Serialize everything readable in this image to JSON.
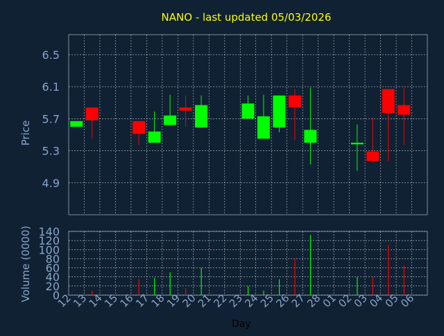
{
  "title": "NANO - last updated 05/03/2026",
  "colors": {
    "background": "#0f2133",
    "title": "#ffff00",
    "axis_text": "#8aa4c8",
    "xlabel_text": "#000000",
    "grid": "#ffffff",
    "up": "#00ff00",
    "down": "#ff0000"
  },
  "chart_data": [
    {
      "type": "candlestick",
      "ylabel": "Price",
      "ylim": [
        4.5,
        6.75
      ],
      "yticks": [
        "4.9",
        "5.3",
        "5.7",
        "6.1",
        "6.5"
      ],
      "grid": true,
      "categories": [
        "12",
        "13",
        "14",
        "15",
        "16",
        "17",
        "18",
        "19",
        "20",
        "21",
        "22",
        "23",
        "24",
        "25",
        "26",
        "27",
        "28",
        "01",
        "02",
        "03",
        "04",
        "05",
        "06"
      ],
      "candles": [
        {
          "x": "12",
          "open": 5.6,
          "high": 5.67,
          "low": 5.6,
          "close": 5.67
        },
        {
          "x": "13",
          "open": 5.84,
          "high": 5.84,
          "low": 5.45,
          "close": 5.68
        },
        {
          "x": "16",
          "open": 5.67,
          "high": 5.67,
          "low": 5.37,
          "close": 5.51
        },
        {
          "x": "17",
          "open": 5.4,
          "high": 5.79,
          "low": 5.4,
          "close": 5.54
        },
        {
          "x": "18",
          "open": 5.62,
          "high": 6.0,
          "low": 5.62,
          "close": 5.74
        },
        {
          "x": "19",
          "open": 5.84,
          "high": 5.99,
          "low": 5.6,
          "close": 5.8
        },
        {
          "x": "20",
          "open": 5.59,
          "high": 5.99,
          "low": 5.59,
          "close": 5.87
        },
        {
          "x": "23",
          "open": 5.7,
          "high": 5.99,
          "low": 5.7,
          "close": 5.89
        },
        {
          "x": "24",
          "open": 5.45,
          "high": 6.0,
          "low": 5.45,
          "close": 5.73
        },
        {
          "x": "25",
          "open": 5.59,
          "high": 5.99,
          "low": 5.53,
          "close": 5.99
        },
        {
          "x": "26",
          "open": 5.99,
          "high": 6.07,
          "low": 5.43,
          "close": 5.84
        },
        {
          "x": "27",
          "open": 5.4,
          "high": 6.09,
          "low": 5.13,
          "close": 5.56
        },
        {
          "x": "02",
          "open": 5.38,
          "high": 5.63,
          "low": 5.05,
          "close": 5.4
        },
        {
          "x": "03",
          "open": 5.29,
          "high": 5.71,
          "low": 5.15,
          "close": 5.17
        },
        {
          "x": "04",
          "open": 6.07,
          "high": 6.07,
          "low": 5.17,
          "close": 5.77
        },
        {
          "x": "05",
          "open": 5.87,
          "high": 6.09,
          "low": 5.37,
          "close": 5.75
        }
      ]
    },
    {
      "type": "bar",
      "xlabel": "Day",
      "ylabel": "Volume (0000)",
      "ylim": [
        0,
        140
      ],
      "yticks": [
        "0",
        "20",
        "40",
        "60",
        "80",
        "100",
        "120",
        "140"
      ],
      "grid": true,
      "categories": [
        "12",
        "13",
        "14",
        "15",
        "16",
        "17",
        "18",
        "19",
        "20",
        "21",
        "22",
        "23",
        "24",
        "25",
        "26",
        "27",
        "28",
        "01",
        "02",
        "03",
        "04",
        "05",
        "06"
      ],
      "bars": [
        {
          "x": "13",
          "value": 10,
          "dir": "down"
        },
        {
          "x": "16",
          "value": 35,
          "dir": "down"
        },
        {
          "x": "17",
          "value": 38,
          "dir": "up"
        },
        {
          "x": "18",
          "value": 50,
          "dir": "up"
        },
        {
          "x": "19",
          "value": 15,
          "dir": "down"
        },
        {
          "x": "20",
          "value": 60,
          "dir": "up"
        },
        {
          "x": "23",
          "value": 20,
          "dir": "up"
        },
        {
          "x": "24",
          "value": 10,
          "dir": "up"
        },
        {
          "x": "25",
          "value": 35,
          "dir": "up"
        },
        {
          "x": "26",
          "value": 80,
          "dir": "down"
        },
        {
          "x": "27",
          "value": 132,
          "dir": "up"
        },
        {
          "x": "02",
          "value": 40,
          "dir": "up"
        },
        {
          "x": "03",
          "value": 40,
          "dir": "down"
        },
        {
          "x": "04",
          "value": 110,
          "dir": "down"
        },
        {
          "x": "05",
          "value": 65,
          "dir": "down"
        }
      ]
    }
  ]
}
